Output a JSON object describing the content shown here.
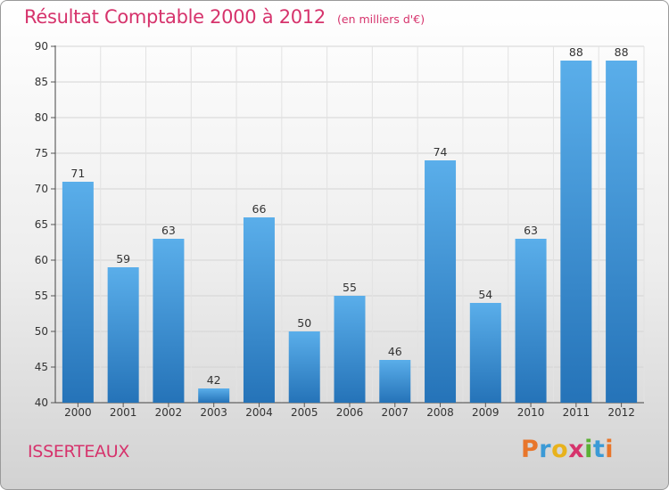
{
  "header": {
    "title": "Résultat Comptable 2000 à 2012",
    "subtitle": "(en milliers d'€)"
  },
  "footer": {
    "place": "ISSERTEAUX",
    "logo_text": "Proxiti"
  },
  "colors": {
    "accent": "#d6336c",
    "bar_top": "#5aaeea",
    "bar_bottom": "#2573b8"
  },
  "chart_data": {
    "type": "bar",
    "title": "Résultat Comptable 2000 à 2012",
    "subtitle": "(en milliers d'€)",
    "xlabel": "",
    "ylabel": "",
    "categories": [
      "2000",
      "2001",
      "2002",
      "2003",
      "2004",
      "2005",
      "2006",
      "2007",
      "2008",
      "2009",
      "2010",
      "2011",
      "2012"
    ],
    "values": [
      71,
      59,
      63,
      42,
      66,
      50,
      55,
      46,
      74,
      54,
      63,
      88,
      88
    ],
    "data_labels": [
      "71",
      "59",
      "63",
      "42",
      "66",
      "50",
      "55",
      "46",
      "74",
      "54",
      "63",
      "88",
      "88"
    ],
    "ylim": [
      40,
      90
    ],
    "yticks": [
      40,
      45,
      50,
      55,
      60,
      65,
      70,
      75,
      80,
      85,
      90
    ],
    "grid": true,
    "legend": "none"
  }
}
